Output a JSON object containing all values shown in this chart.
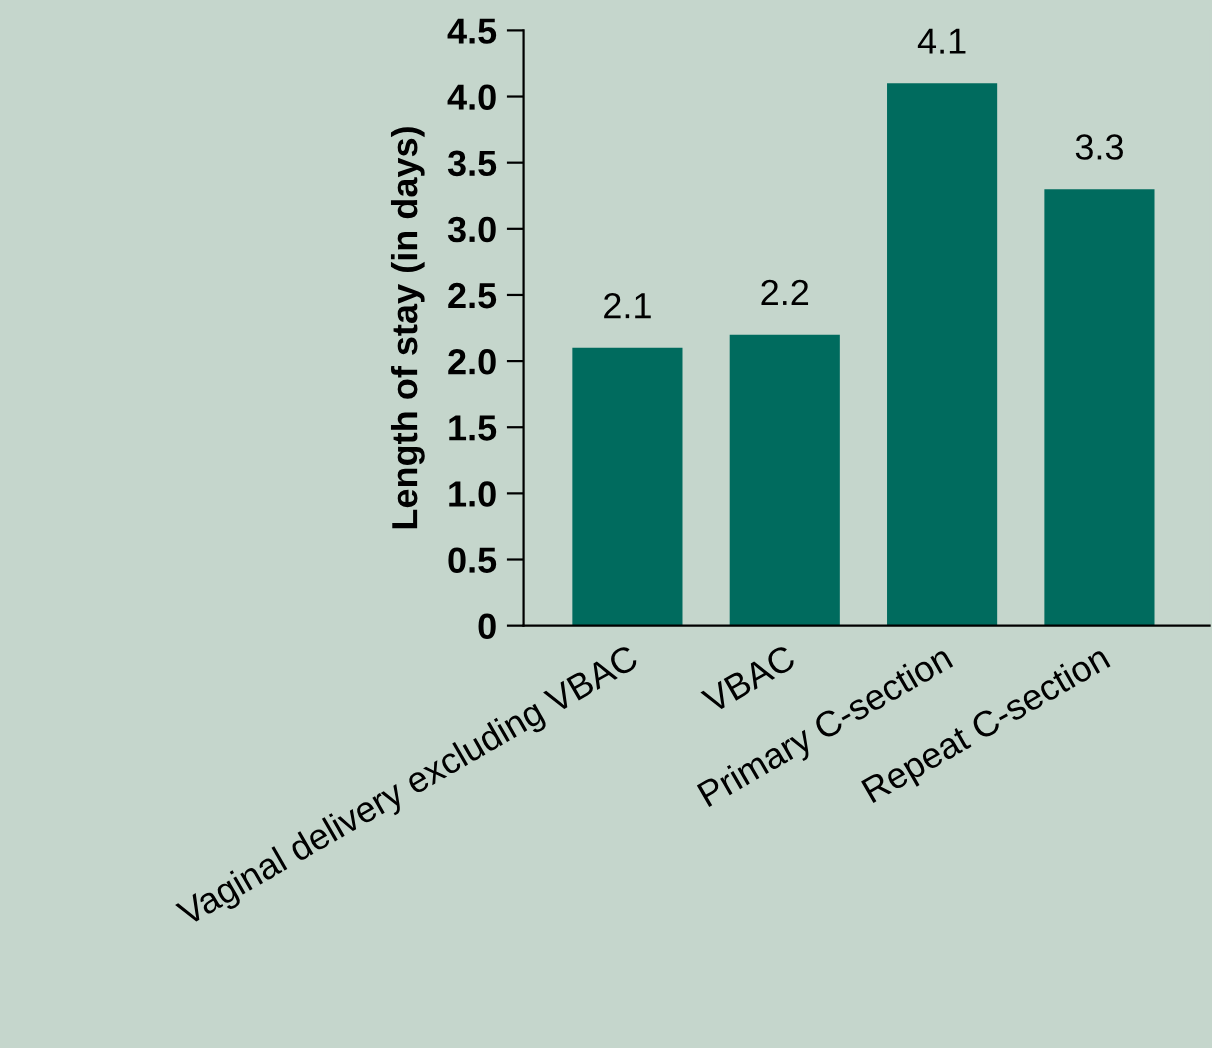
{
  "chart_data": {
    "type": "bar",
    "ylabel": "Length of stay (in days)",
    "categories": [
      "Vaginal delivery excluding VBAC",
      "VBAC",
      "Primary C-section",
      "Repeat C-section"
    ],
    "values": [
      2.1,
      2.2,
      4.1,
      3.3
    ],
    "color": "#006b5e",
    "ylim": [
      0,
      4.5
    ],
    "yticks": [
      0,
      {
        "value": 0.5,
        "label": "0.5"
      },
      {
        "value": 1,
        "label": "1.0"
      },
      {
        "value": 1.5,
        "label": "1.5"
      },
      {
        "value": 2,
        "label": "2.0"
      },
      {
        "value": 2.5,
        "label": "2.5"
      },
      {
        "value": 3,
        "label": "3.0"
      },
      {
        "value": 3.5,
        "label": "3.5"
      },
      {
        "value": 4,
        "label": "4.0"
      },
      {
        "value": 4.5,
        "label": "4.5"
      }
    ],
    "data_labels": true,
    "grid": false,
    "legend": false
  }
}
